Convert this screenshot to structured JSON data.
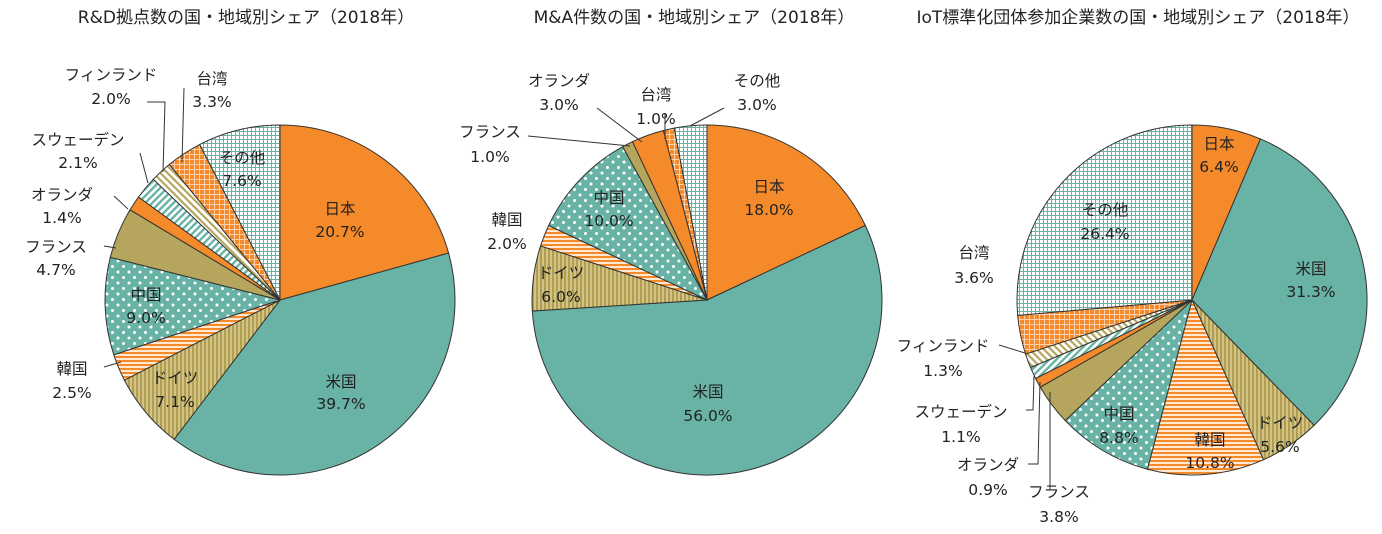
{
  "chart_data": [
    {
      "type": "pie",
      "title": "R&D拠点数の国・地域別シェア（2018年）",
      "unit": "%",
      "slices": [
        {
          "label": "日本",
          "value": 20.7,
          "value_text": "20.7%",
          "fill": "solid-orange"
        },
        {
          "label": "米国",
          "value": 39.7,
          "value_text": "39.7%",
          "fill": "solid-teal"
        },
        {
          "label": "ドイツ",
          "value": 7.1,
          "value_text": "7.1%",
          "fill": "olive-vertical"
        },
        {
          "label": "韓国",
          "value": 2.5,
          "value_text": "2.5%",
          "fill": "orange-horizontal"
        },
        {
          "label": "中国",
          "value": 9.0,
          "value_text": "9.0%",
          "fill": "teal-dots"
        },
        {
          "label": "フランス",
          "value": 4.7,
          "value_text": "4.7%",
          "fill": "solid-olive"
        },
        {
          "label": "オランダ",
          "value": 1.4,
          "value_text": "1.4%",
          "fill": "solid-orange"
        },
        {
          "label": "スウェーデン",
          "value": 2.1,
          "value_text": "2.1%",
          "fill": "teal-diagonal"
        },
        {
          "label": "フィンランド",
          "value": 2.0,
          "value_text": "2.0%",
          "fill": "olive-diagonal"
        },
        {
          "label": "台湾",
          "value": 3.3,
          "value_text": "3.3%",
          "fill": "orange-grid"
        },
        {
          "label": "その他",
          "value": 7.6,
          "value_text": "7.6%",
          "fill": "teal-grid"
        }
      ]
    },
    {
      "type": "pie",
      "title": "M&A件数の国・地域別シェア（2018年）",
      "unit": "%",
      "slices": [
        {
          "label": "日本",
          "value": 18.0,
          "value_text": "18.0%",
          "fill": "solid-orange"
        },
        {
          "label": "米国",
          "value": 56.0,
          "value_text": "56.0%",
          "fill": "solid-teal"
        },
        {
          "label": "ドイツ",
          "value": 6.0,
          "value_text": "6.0%",
          "fill": "olive-vertical"
        },
        {
          "label": "韓国",
          "value": 2.0,
          "value_text": "2.0%",
          "fill": "orange-horizontal"
        },
        {
          "label": "中国",
          "value": 10.0,
          "value_text": "10.0%",
          "fill": "teal-dots"
        },
        {
          "label": "フランス",
          "value": 1.0,
          "value_text": "1.0%",
          "fill": "solid-olive"
        },
        {
          "label": "オランダ",
          "value": 3.0,
          "value_text": "3.0%",
          "fill": "solid-orange"
        },
        {
          "label": "台湾",
          "value": 1.0,
          "value_text": "1.0%",
          "fill": "orange-grid"
        },
        {
          "label": "その他",
          "value": 3.0,
          "value_text": "3.0%",
          "fill": "teal-grid"
        }
      ]
    },
    {
      "type": "pie",
      "title": "IoT標準化団体参加企業数の国・地域別シェア（2018年）",
      "unit": "%",
      "slices": [
        {
          "label": "日本",
          "value": 6.4,
          "value_text": "6.4%",
          "fill": "solid-orange"
        },
        {
          "label": "米国",
          "value": 31.3,
          "value_text": "31.3%",
          "fill": "solid-teal"
        },
        {
          "label": "ドイツ",
          "value": 5.6,
          "value_text": "5.6%",
          "fill": "olive-vertical"
        },
        {
          "label": "韓国",
          "value": 10.8,
          "value_text": "10.8%",
          "fill": "orange-horizontal"
        },
        {
          "label": "中国",
          "value": 8.8,
          "value_text": "8.8%",
          "fill": "teal-dots"
        },
        {
          "label": "フランス",
          "value": 3.8,
          "value_text": "3.8%",
          "fill": "solid-olive"
        },
        {
          "label": "オランダ",
          "value": 0.9,
          "value_text": "0.9%",
          "fill": "solid-orange"
        },
        {
          "label": "スウェーデン",
          "value": 1.1,
          "value_text": "1.1%",
          "fill": "teal-diagonal"
        },
        {
          "label": "フィンランド",
          "value": 1.3,
          "value_text": "1.3%",
          "fill": "olive-diagonal"
        },
        {
          "label": "台湾",
          "value": 3.6,
          "value_text": "3.6%",
          "fill": "orange-grid"
        },
        {
          "label": "その他",
          "value": 26.4,
          "value_text": "26.4%",
          "fill": "teal-grid"
        }
      ]
    }
  ],
  "palette": {
    "orange": "#f48a2a",
    "teal": "#68b3a6",
    "olive": "#b5a55d",
    "olive_light": "#c6b56a",
    "orange_light": "#f7a868",
    "teal_light": "#b8dad3",
    "outline": "#333333"
  }
}
